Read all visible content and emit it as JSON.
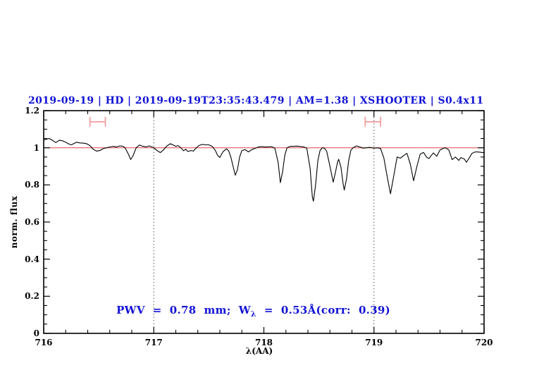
{
  "page": {
    "background": "#ffffff"
  },
  "chart_data": {
    "type": "line",
    "title": "2019-09-19 | HD | 2019-09-19T23:35:43.479 | AM=1.38 | XSHOOTER | S0.4x11",
    "title_color": "#1212d6",
    "xlabel": "λ(AA)",
    "ylabel": "norm. flux",
    "xlim": [
      716,
      720
    ],
    "ylim": [
      0,
      1.2
    ],
    "xticks": [
      716,
      717,
      718,
      719,
      720
    ],
    "xtick_labels": [
      "716",
      "717",
      "718",
      "719",
      "720"
    ],
    "yticks": [
      0,
      0.2,
      0.4,
      0.6,
      0.8,
      1,
      1.2
    ],
    "ytick_labels": [
      "0",
      "0.2",
      "0.4",
      "0.6",
      "0.8",
      "1",
      "1.2"
    ],
    "x_minor_step": 0.2,
    "y_minor_step": 0.05,
    "grid": false,
    "legend_position": "none",
    "vlines": [
      717,
      719
    ],
    "vline_style": "dotted",
    "vline_color": "#555555",
    "reference_line": {
      "y": 1.0,
      "color": "#e05b5b"
    },
    "range_markers": [
      {
        "x1": 716.42,
        "x2": 716.56,
        "y": 1.14,
        "color": "#f09595"
      },
      {
        "x1": 718.92,
        "x2": 719.06,
        "y": 1.14,
        "color": "#f09595"
      }
    ],
    "annotation": {
      "pre": "PWV  =  0.78  mm;  W",
      "sub": "λ",
      "post": "  =  0.53Å(corr:  0.39)",
      "color": "#1212d6"
    },
    "line_color": "#000000",
    "series": [
      {
        "name": "normalized spectrum",
        "x": [
          716.0,
          716.03,
          716.05,
          716.08,
          716.11,
          716.14,
          716.17,
          716.2,
          716.23,
          716.25,
          716.28,
          716.3,
          716.33,
          716.36,
          716.39,
          716.42,
          716.45,
          716.48,
          716.51,
          716.54,
          716.57,
          716.6,
          716.63,
          716.66,
          716.69,
          716.72,
          716.74,
          716.77,
          716.79,
          716.81,
          716.84,
          716.87,
          716.9,
          716.93,
          716.96,
          716.98,
          717.0,
          717.03,
          717.06,
          717.09,
          717.12,
          717.15,
          717.18,
          717.2,
          717.22,
          717.25,
          717.27,
          717.29,
          717.31,
          717.34,
          717.36,
          717.38,
          717.41,
          717.44,
          717.47,
          717.5,
          717.53,
          717.56,
          717.58,
          717.6,
          717.63,
          717.66,
          717.68,
          717.7,
          717.72,
          717.74,
          717.76,
          717.78,
          717.8,
          717.83,
          717.86,
          717.89,
          717.92,
          717.95,
          717.98,
          718.01,
          718.04,
          718.07,
          718.1,
          718.13,
          718.15,
          718.17,
          718.19,
          718.21,
          718.24,
          718.27,
          718.3,
          718.33,
          718.36,
          718.39,
          718.42,
          718.44,
          718.45,
          718.47,
          718.49,
          718.51,
          718.53,
          718.55,
          718.57,
          718.6,
          718.63,
          718.65,
          718.67,
          718.68,
          718.7,
          718.72,
          718.73,
          718.75,
          718.77,
          718.79,
          718.81,
          718.84,
          718.87,
          718.9,
          718.93,
          718.96,
          719.0,
          719.03,
          719.06,
          719.09,
          719.12,
          719.15,
          719.18,
          719.21,
          719.24,
          719.27,
          719.3,
          719.33,
          719.36,
          719.39,
          719.42,
          719.45,
          719.48,
          719.5,
          719.52,
          719.54,
          719.57,
          719.6,
          719.63,
          719.65,
          719.68,
          719.71,
          719.74,
          719.77,
          719.79,
          719.82,
          719.84,
          719.86,
          719.89,
          719.92,
          719.95,
          719.98,
          720.0
        ],
        "y": [
          1.042,
          1.047,
          1.05,
          1.04,
          1.028,
          1.04,
          1.038,
          1.03,
          1.02,
          1.016,
          1.024,
          1.03,
          1.026,
          1.025,
          1.022,
          1.012,
          0.992,
          0.982,
          0.985,
          0.995,
          1.0,
          1.004,
          1.008,
          1.004,
          1.01,
          1.008,
          1.0,
          0.965,
          0.937,
          0.955,
          1.0,
          1.015,
          1.008,
          1.005,
          1.01,
          1.005,
          1.0,
          0.985,
          0.974,
          0.99,
          1.01,
          1.022,
          1.014,
          1.008,
          1.012,
          0.998,
          0.984,
          0.992,
          0.98,
          0.985,
          0.982,
          0.996,
          1.012,
          1.018,
          1.016,
          1.016,
          1.008,
          0.985,
          0.958,
          0.948,
          0.98,
          0.994,
          0.984,
          0.95,
          0.9,
          0.852,
          0.882,
          0.95,
          0.985,
          0.99,
          0.978,
          0.99,
          0.997,
          1.004,
          1.006,
          1.004,
          1.005,
          1.006,
          0.998,
          0.92,
          0.812,
          0.872,
          0.96,
          1.0,
          1.008,
          1.008,
          1.009,
          1.007,
          1.005,
          0.998,
          0.89,
          0.735,
          0.712,
          0.8,
          0.93,
          0.985,
          1.0,
          0.998,
          0.982,
          0.9,
          0.815,
          0.868,
          0.925,
          0.938,
          0.895,
          0.805,
          0.772,
          0.83,
          0.93,
          0.986,
          1.0,
          1.01,
          1.005,
          0.998,
          1.0,
          1.002,
          0.998,
          1.0,
          0.996,
          0.945,
          0.845,
          0.752,
          0.85,
          0.95,
          0.944,
          0.958,
          0.97,
          0.912,
          0.822,
          0.9,
          0.966,
          0.975,
          0.948,
          0.942,
          0.958,
          0.972,
          0.954,
          0.988,
          0.997,
          1.0,
          0.988,
          0.936,
          0.95,
          0.932,
          0.947,
          0.94,
          0.922,
          0.94,
          0.97,
          0.978,
          0.977,
          0.975,
          0.973
        ]
      }
    ]
  }
}
